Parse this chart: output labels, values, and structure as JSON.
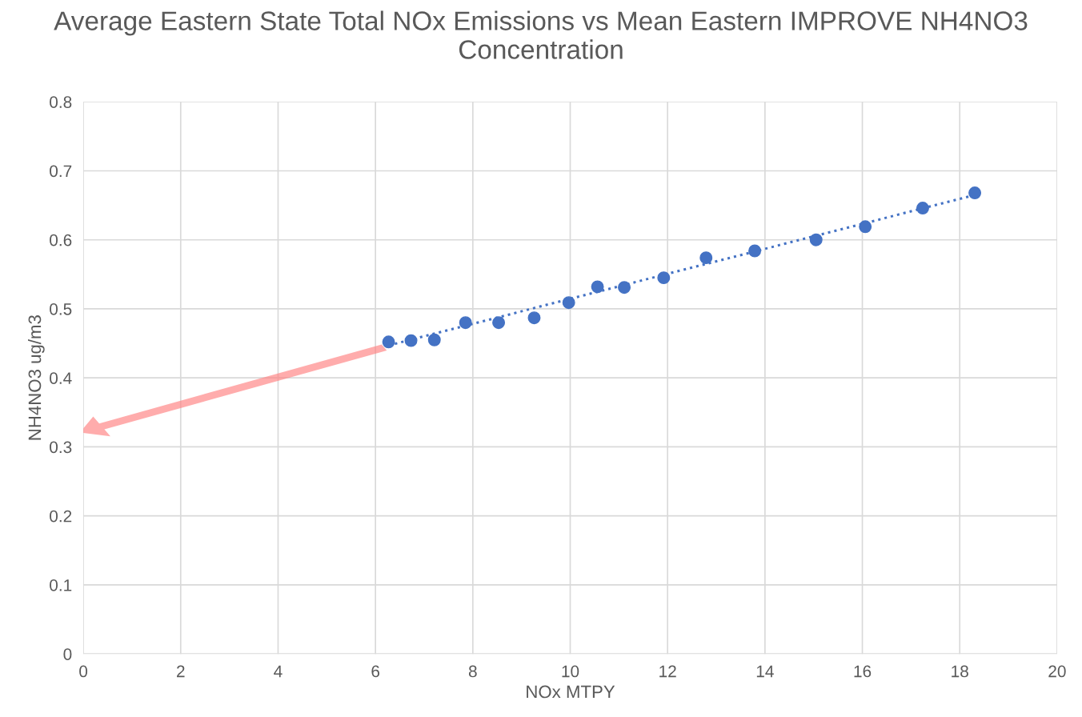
{
  "chart_data": {
    "type": "scatter",
    "title": "Average Eastern State Total NOx Emissions vs Mean Eastern IMPROVE NH4NO3 Concentration",
    "xlabel": "NOx MTPY",
    "ylabel": "NH4NO3 ug/m3",
    "series": [
      {
        "color": "#4472c4",
        "marker": "circle",
        "x": [
          6.27,
          6.73,
          7.21,
          7.85,
          8.53,
          9.26,
          9.97,
          10.56,
          11.11,
          11.92,
          12.79,
          13.79,
          15.05,
          16.06,
          17.24,
          18.31
        ],
        "values": [
          0.452,
          0.454,
          0.455,
          0.48,
          0.48,
          0.487,
          0.509,
          0.532,
          0.531,
          0.545,
          0.574,
          0.584,
          0.6,
          0.619,
          0.646,
          0.668
        ]
      },
      {
        "type": "line",
        "color": "#4472c4",
        "line_style": "dotted",
        "x": [
          6.27,
          18.31
        ],
        "values": [
          0.447,
          0.665
        ]
      }
    ],
    "xlim": [
      0,
      20
    ],
    "ylim": [
      0,
      0.8
    ],
    "xticks": [
      0,
      2,
      4,
      6,
      8,
      10,
      12,
      14,
      16,
      18,
      20
    ],
    "yticks": [
      0,
      0.1,
      0.2,
      0.3,
      0.4,
      0.5,
      0.6,
      0.7,
      0.8
    ],
    "grid": true,
    "legend": false
  }
}
